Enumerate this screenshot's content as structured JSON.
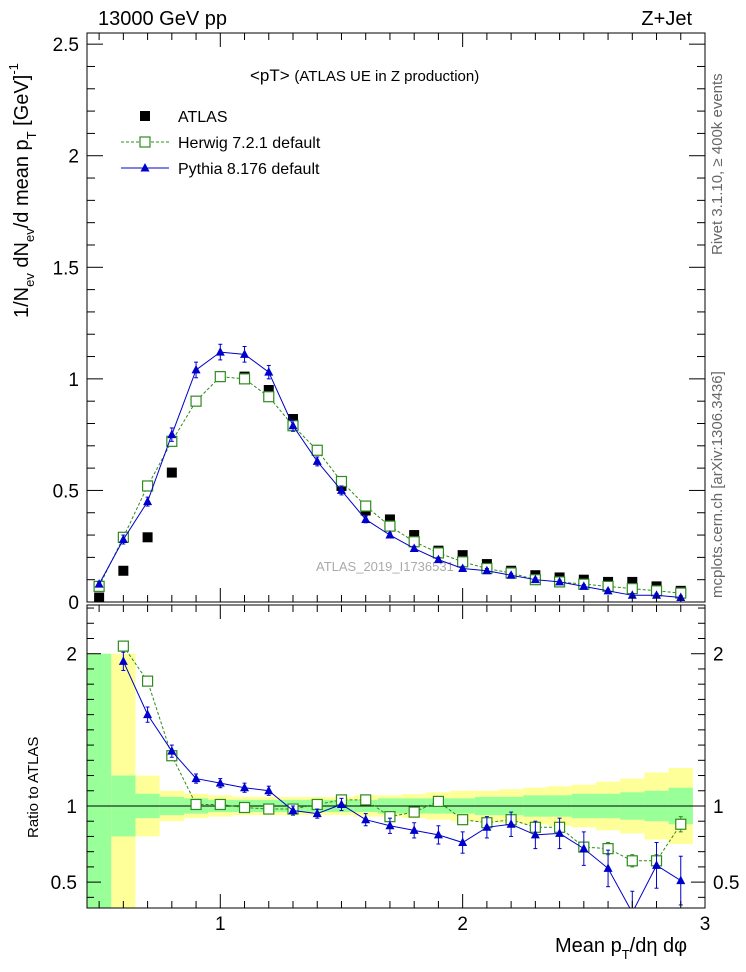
{
  "header": {
    "left": "13000 GeV pp",
    "right": "Z+Jet"
  },
  "side_labels": {
    "rivet": "Rivet 3.1.10,  ≥ 400k events",
    "mcplots": "mcplots.cern.ch [arXiv:1306.3436]"
  },
  "colors": {
    "atlas": "#000000",
    "herwig": "#2e8b1e",
    "pythia": "#0000cc",
    "band_inner": "#99ff99",
    "band_outer": "#ffff99"
  },
  "chart_data": [
    {
      "type": "scatter",
      "panel": "main",
      "title": "<pT>",
      "subtitle": "(ATLAS UE in Z production)",
      "ylabel": "1/N_ev dN_ev/d mean p_T [GeV]^-1",
      "xlabel": "",
      "watermark": "ATLAS_2019_I1736531",
      "xlim": [
        0.45,
        3.0
      ],
      "ylim": [
        0,
        2.55
      ],
      "x_ticks": [
        1,
        2,
        3
      ],
      "y_ticks": [
        "0",
        "0.5",
        "1",
        "1.5",
        "2",
        "2.5"
      ],
      "legend": [
        "ATLAS",
        "Herwig 7.2.1 default",
        "Pythia 8.176 default"
      ],
      "legend_position": "top-left",
      "x": [
        0.5,
        0.6,
        0.7,
        0.8,
        0.9,
        1.0,
        1.1,
        1.2,
        1.3,
        1.4,
        1.5,
        1.6,
        1.7,
        1.8,
        1.9,
        2.0,
        2.1,
        2.2,
        2.3,
        2.4,
        2.5,
        2.6,
        2.7,
        2.8,
        2.9
      ],
      "series": [
        {
          "name": "ATLAS",
          "marker": "square-filled",
          "values": [
            0.02,
            0.14,
            0.29,
            0.58,
            0.9,
            1.01,
            1.01,
            0.95,
            0.82,
            0.68,
            0.52,
            0.41,
            0.37,
            0.3,
            0.23,
            0.21,
            0.17,
            0.14,
            0.12,
            0.11,
            0.1,
            0.09,
            0.09,
            0.07,
            0.05
          ]
        },
        {
          "name": "Herwig 7.2.1 default",
          "marker": "square-open",
          "line": "dashed",
          "values": [
            0.07,
            0.29,
            0.52,
            0.72,
            0.9,
            1.01,
            1.0,
            0.92,
            0.79,
            0.68,
            0.54,
            0.43,
            0.34,
            0.27,
            0.22,
            0.18,
            0.15,
            0.13,
            0.1,
            0.09,
            0.08,
            0.07,
            0.06,
            0.05,
            0.04
          ]
        },
        {
          "name": "Pythia 8.176 default",
          "marker": "triangle-filled",
          "line": "solid",
          "values": [
            0.08,
            0.28,
            0.45,
            0.75,
            1.04,
            1.12,
            1.11,
            1.03,
            0.79,
            0.63,
            0.5,
            0.37,
            0.3,
            0.24,
            0.19,
            0.15,
            0.14,
            0.12,
            0.1,
            0.09,
            0.07,
            0.05,
            0.03,
            0.03,
            0.02
          ],
          "errors": [
            0.01,
            0.02,
            0.02,
            0.03,
            0.035,
            0.035,
            0.035,
            0.03,
            0.025,
            0.02,
            0.02,
            0.015,
            0.01,
            0.01,
            0.01,
            0.01,
            0.01,
            0.008,
            0.008,
            0.008,
            0.008,
            0.008,
            0.008,
            0.008,
            0.008
          ]
        }
      ]
    },
    {
      "type": "scatter",
      "panel": "ratio",
      "ylabel": "Ratio to ATLAS",
      "xlabel": "Mean p_T/dη dφ",
      "reference_line": 1,
      "xlim": [
        0.45,
        3.0
      ],
      "ylim": [
        0.33,
        2.32
      ],
      "x_ticks": [
        "1",
        "2",
        "3"
      ],
      "y_ticks": [
        "0.5",
        "1",
        "2"
      ],
      "bins": [
        0.45,
        0.55,
        0.65,
        0.75,
        0.85,
        0.95,
        1.05,
        1.15,
        1.25,
        1.35,
        1.45,
        1.55,
        1.65,
        1.75,
        1.85,
        1.95,
        2.05,
        2.15,
        2.25,
        2.35,
        2.45,
        2.55,
        2.65,
        2.75,
        2.85,
        2.95
      ],
      "band_inner_halfwidth": [
        1.0,
        0.2,
        0.08,
        0.06,
        0.05,
        0.04,
        0.04,
        0.04,
        0.04,
        0.04,
        0.04,
        0.04,
        0.05,
        0.05,
        0.05,
        0.05,
        0.06,
        0.06,
        0.07,
        0.07,
        0.08,
        0.08,
        0.09,
        0.1,
        0.12
      ],
      "band_outer_halfwidth": [
        1.0,
        1.0,
        0.2,
        0.1,
        0.08,
        0.07,
        0.06,
        0.06,
        0.06,
        0.06,
        0.06,
        0.07,
        0.07,
        0.08,
        0.09,
        0.1,
        0.1,
        0.11,
        0.12,
        0.13,
        0.14,
        0.16,
        0.18,
        0.22,
        0.25
      ],
      "x": [
        0.6,
        0.7,
        0.8,
        0.9,
        1.0,
        1.1,
        1.2,
        1.3,
        1.4,
        1.5,
        1.6,
        1.7,
        1.8,
        1.9,
        2.0,
        2.1,
        2.2,
        2.3,
        2.4,
        2.5,
        2.6,
        2.7,
        2.8,
        2.9
      ],
      "series": [
        {
          "name": "Herwig 7.2.1 default",
          "marker": "square-open",
          "line": "dashed",
          "values": [
            2.05,
            1.82,
            1.33,
            1.01,
            1.01,
            0.99,
            0.98,
            0.98,
            1.01,
            1.04,
            1.04,
            0.93,
            0.96,
            1.03,
            0.91,
            0.89,
            0.91,
            0.86,
            0.86,
            0.73,
            0.72,
            0.64,
            0.64,
            0.88
          ],
          "errors": [
            0.03,
            0.03,
            0.03,
            0.02,
            0.02,
            0.02,
            0.02,
            0.02,
            0.02,
            0.02,
            0.02,
            0.03,
            0.03,
            0.03,
            0.03,
            0.03,
            0.03,
            0.03,
            0.03,
            0.03,
            0.04,
            0.04,
            0.04,
            0.05
          ]
        },
        {
          "name": "Pythia 8.176 default",
          "marker": "triangle-filled",
          "line": "solid",
          "values": [
            1.95,
            1.6,
            1.36,
            1.18,
            1.15,
            1.12,
            1.1,
            0.97,
            0.95,
            1.01,
            0.91,
            0.87,
            0.84,
            0.81,
            0.76,
            0.86,
            0.88,
            0.81,
            0.82,
            0.72,
            0.59,
            0.3,
            0.61,
            0.51
          ],
          "errors": [
            0.06,
            0.05,
            0.04,
            0.03,
            0.03,
            0.03,
            0.03,
            0.03,
            0.03,
            0.04,
            0.04,
            0.05,
            0.05,
            0.06,
            0.07,
            0.07,
            0.08,
            0.09,
            0.1,
            0.11,
            0.12,
            0.14,
            0.15,
            0.16
          ]
        }
      ]
    }
  ]
}
